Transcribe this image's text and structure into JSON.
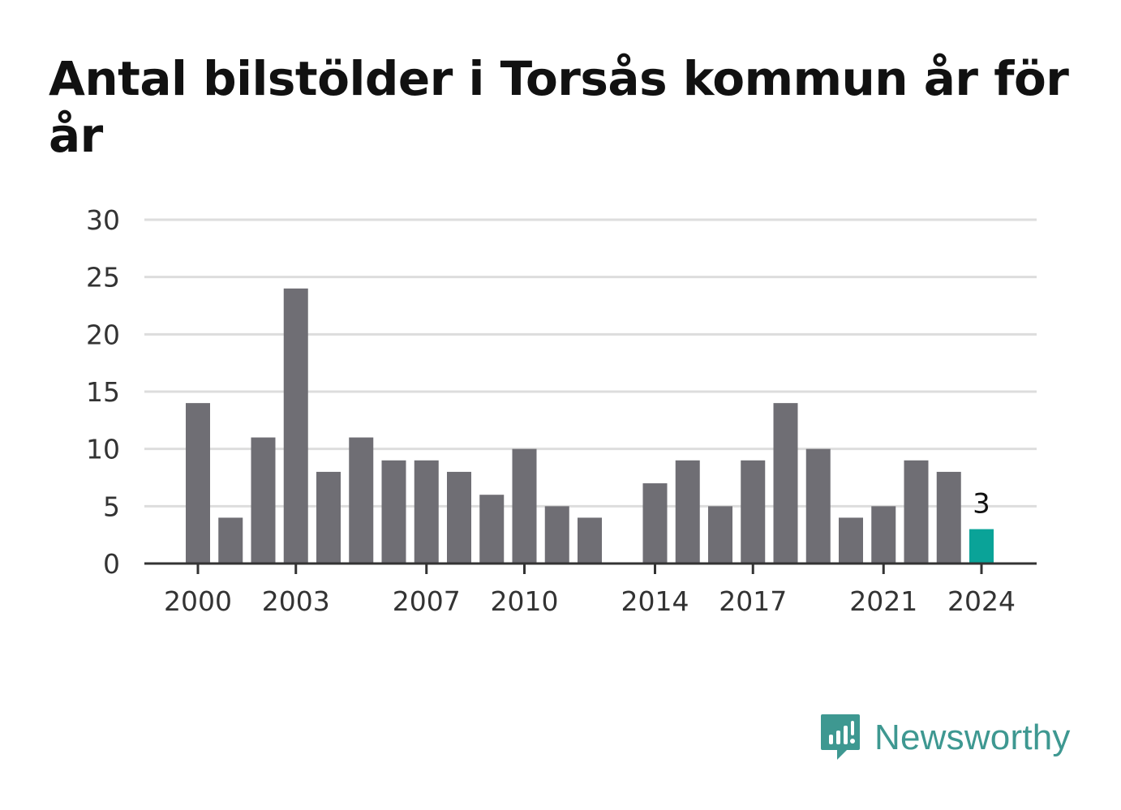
{
  "chart_data": {
    "type": "bar",
    "title": "Antal bilstölder i Torsås kommun år för år",
    "xlabel": "",
    "ylabel": "",
    "ylim": [
      0,
      30
    ],
    "yticks": [
      0,
      5,
      10,
      15,
      20,
      25,
      30
    ],
    "xtick_labels": [
      "2000",
      "2003",
      "2007",
      "2010",
      "2014",
      "2017",
      "2021",
      "2024"
    ],
    "categories": [
      "2000",
      "2001",
      "2002",
      "2003",
      "2004",
      "2005",
      "2006",
      "2007",
      "2008",
      "2009",
      "2010",
      "2011",
      "2012",
      "2013",
      "2014",
      "2015",
      "2016",
      "2017",
      "2018",
      "2019",
      "2020",
      "2021",
      "2022",
      "2023",
      "2024"
    ],
    "values": [
      14,
      4,
      11,
      24,
      8,
      11,
      9,
      9,
      8,
      6,
      10,
      5,
      4,
      0,
      7,
      9,
      5,
      9,
      14,
      10,
      4,
      5,
      9,
      8,
      3
    ],
    "highlight_label": "3",
    "grid": true,
    "colors": {
      "bar": "#6f6e74",
      "highlight": "#0aa398",
      "grid": "#dddddd",
      "axis": "#333333",
      "text": "#333333"
    }
  },
  "brand": {
    "name": "Newsworthy",
    "color": "#3e9891"
  }
}
